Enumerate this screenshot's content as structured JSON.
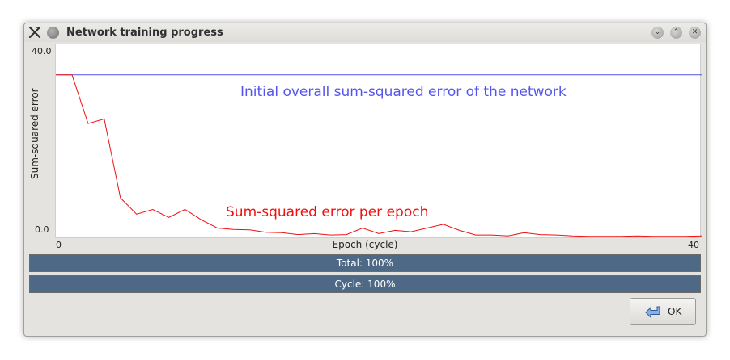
{
  "window": {
    "title": "Network training progress",
    "icons": [
      "app-icon",
      "menu-icon",
      "minimize-icon",
      "maximize-icon",
      "close-icon"
    ]
  },
  "chart_data": {
    "type": "line",
    "xlabel": "Epoch (cycle)",
    "ylabel": "Sum-squared error",
    "x_tick_labels": [
      "0",
      "40"
    ],
    "y_tick_labels": [
      "40.0",
      "0.0"
    ],
    "xlim": [
      0,
      40
    ],
    "ylim": [
      0,
      40
    ],
    "grid": false,
    "series": [
      {
        "name": "Initial overall sum-squared error of the network",
        "color": "#5555ee",
        "x": [
          0,
          40
        ],
        "values": [
          35.0,
          35.0
        ]
      },
      {
        "name": "Sum-squared error per epoch",
        "color": "#ee1111",
        "x": [
          0,
          1,
          2,
          3,
          4,
          5,
          6,
          7,
          8,
          9,
          10,
          11,
          12,
          13,
          14,
          15,
          16,
          17,
          18,
          19,
          20,
          21,
          22,
          23,
          24,
          25,
          26,
          27,
          28,
          29,
          30,
          31,
          32,
          33,
          34,
          35,
          36,
          37,
          38,
          39,
          40
        ],
        "values": [
          35.0,
          35.0,
          24.5,
          25.5,
          8.5,
          5.0,
          6.0,
          4.3,
          6.0,
          3.8,
          2.0,
          1.7,
          1.6,
          1.1,
          1.0,
          0.6,
          0.8,
          0.5,
          0.6,
          2.0,
          0.8,
          1.5,
          1.2,
          2.0,
          2.8,
          1.5,
          0.5,
          0.5,
          0.3,
          1.0,
          0.6,
          0.5,
          0.3,
          0.2,
          0.2,
          0.2,
          0.3,
          0.2,
          0.2,
          0.2,
          0.3
        ]
      }
    ]
  },
  "progress": {
    "total": {
      "label": "Total: 100%",
      "value": 1.0
    },
    "cycle": {
      "label": "Cycle: 100%",
      "value": 1.0
    }
  },
  "ok_button": {
    "label": "OK",
    "icon": "ok-arrow-icon"
  }
}
